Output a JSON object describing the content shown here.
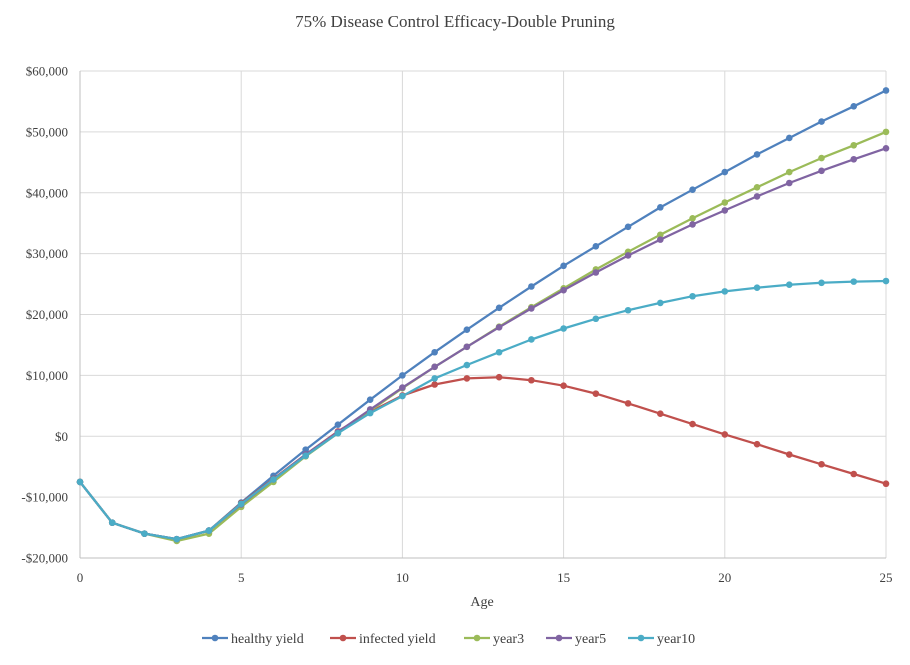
{
  "colors": {
    "gridline": "#d9d9d9",
    "axis": "#bfbfbf",
    "text": "#404040",
    "background": "#ffffff"
  },
  "chart_data": {
    "type": "line",
    "title": "75% Disease Control Efficacy-Double Pruning",
    "xlabel": "Age",
    "ylabel": "",
    "xlim": [
      0,
      25
    ],
    "ylim": [
      -20000,
      60000
    ],
    "x_ticks": [
      0,
      5,
      10,
      15,
      20,
      25
    ],
    "x_tick_labels": [
      "0",
      "5",
      "10",
      "15",
      "20",
      "25"
    ],
    "y_ticks": [
      -20000,
      -10000,
      0,
      10000,
      20000,
      30000,
      40000,
      50000,
      60000
    ],
    "y_tick_labels": [
      "-$20,000",
      "-$10,000",
      "$0",
      "$10,000",
      "$20,000",
      "$30,000",
      "$40,000",
      "$50,000",
      "$60,000"
    ],
    "grid": true,
    "legend_position": "bottom",
    "x": [
      0,
      1,
      2,
      3,
      4,
      5,
      6,
      7,
      8,
      9,
      10,
      11,
      12,
      13,
      14,
      15,
      16,
      17,
      18,
      19,
      20,
      21,
      22,
      23,
      24,
      25
    ],
    "series": [
      {
        "name": "healthy yield",
        "color": "#4f81bd",
        "values": [
          -7500,
          -14200,
          -16000,
          -16900,
          -15500,
          -10900,
          -6500,
          -2200,
          1900,
          6000,
          10000,
          13800,
          17500,
          21100,
          24600,
          28000,
          31200,
          34400,
          37600,
          40500,
          43400,
          46300,
          49000,
          51700,
          54200,
          56800
        ]
      },
      {
        "name": "infected yield",
        "color": "#c0504d",
        "values": [
          -7500,
          -14200,
          -16000,
          -16900,
          -15500,
          -11000,
          -7000,
          -3000,
          800,
          4000,
          6700,
          8500,
          9500,
          9700,
          9200,
          8300,
          7000,
          5400,
          3700,
          2000,
          300,
          -1300,
          -3000,
          -4600,
          -6200,
          -7800
        ]
      },
      {
        "name": "year3",
        "color": "#9bbb59",
        "values": [
          -7500,
          -14200,
          -16000,
          -17200,
          -16000,
          -11600,
          -7500,
          -3300,
          500,
          4200,
          7900,
          11400,
          14700,
          18000,
          21200,
          24300,
          27400,
          30300,
          33100,
          35800,
          38400,
          40900,
          43400,
          45700,
          47800,
          50000
        ]
      },
      {
        "name": "year5",
        "color": "#8064a2",
        "values": [
          -7500,
          -14200,
          -16000,
          -16900,
          -15500,
          -11200,
          -7100,
          -3000,
          700,
          4400,
          8000,
          11400,
          14700,
          17900,
          21000,
          24000,
          26900,
          29700,
          32300,
          34800,
          37100,
          39400,
          41600,
          43600,
          45500,
          47300
        ]
      },
      {
        "name": "year10",
        "color": "#4bacc6",
        "values": [
          -7500,
          -14200,
          -16000,
          -16900,
          -15500,
          -11100,
          -7100,
          -3200,
          500,
          3800,
          6600,
          9500,
          11700,
          13800,
          15900,
          17700,
          19300,
          20700,
          21900,
          23000,
          23800,
          24400,
          24900,
          25200,
          25400,
          25500
        ]
      }
    ]
  }
}
